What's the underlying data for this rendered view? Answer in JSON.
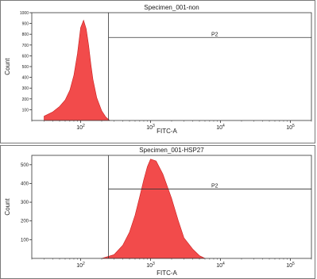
{
  "chart_data": [
    {
      "type": "histogram",
      "title": "Specimen_001-non",
      "xlabel": "FITC-A",
      "ylabel": "Count",
      "x_scale": "log",
      "xlim": [
        20,
        200000
      ],
      "ylim": [
        0,
        1000
      ],
      "x_ticks": [
        "10",
        "10",
        "10",
        "10"
      ],
      "x_tick_exponents": [
        "2",
        "3",
        "4",
        "5"
      ],
      "x_tick_values": [
        100,
        1000,
        10000,
        100000
      ],
      "y_ticks": [
        "100",
        "200",
        "300",
        "400",
        "500",
        "600",
        "700",
        "800",
        "900",
        "1000"
      ],
      "y_tick_values": [
        100,
        200,
        300,
        400,
        500,
        600,
        700,
        800,
        900,
        1000
      ],
      "fill_color": "#f24b4b",
      "gate": {
        "label": "P2",
        "x_start": 250,
        "x_end": 200000,
        "level": 770
      },
      "x": [
        30,
        40,
        50,
        60,
        70,
        80,
        90,
        100,
        110,
        120,
        130,
        140,
        150,
        170,
        200,
        230,
        260
      ],
      "values": [
        40,
        80,
        130,
        190,
        280,
        420,
        620,
        860,
        930,
        850,
        700,
        520,
        380,
        210,
        90,
        30,
        0
      ]
    },
    {
      "type": "histogram",
      "title": "Specimen_001-HSP27",
      "xlabel": "FITC-A",
      "ylabel": "Count",
      "x_scale": "log",
      "xlim": [
        20,
        200000
      ],
      "ylim": [
        0,
        550
      ],
      "x_ticks": [
        "10",
        "10",
        "10",
        "10"
      ],
      "x_tick_exponents": [
        "2",
        "3",
        "4",
        "5"
      ],
      "x_tick_values": [
        100,
        1000,
        10000,
        100000
      ],
      "y_ticks": [
        "100",
        "200",
        "300",
        "400",
        "500"
      ],
      "y_tick_values": [
        100,
        200,
        300,
        400,
        500
      ],
      "fill_color": "#f24b4b",
      "gate": {
        "label": "P2",
        "x_start": 250,
        "x_end": 200000,
        "level": 370
      },
      "x": [
        200,
        300,
        400,
        500,
        600,
        700,
        800,
        900,
        1000,
        1200,
        1500,
        2000,
        2500,
        3000,
        4000,
        5000,
        6000
      ],
      "values": [
        0,
        20,
        70,
        140,
        230,
        330,
        420,
        490,
        530,
        520,
        450,
        320,
        200,
        110,
        50,
        15,
        0
      ]
    }
  ]
}
